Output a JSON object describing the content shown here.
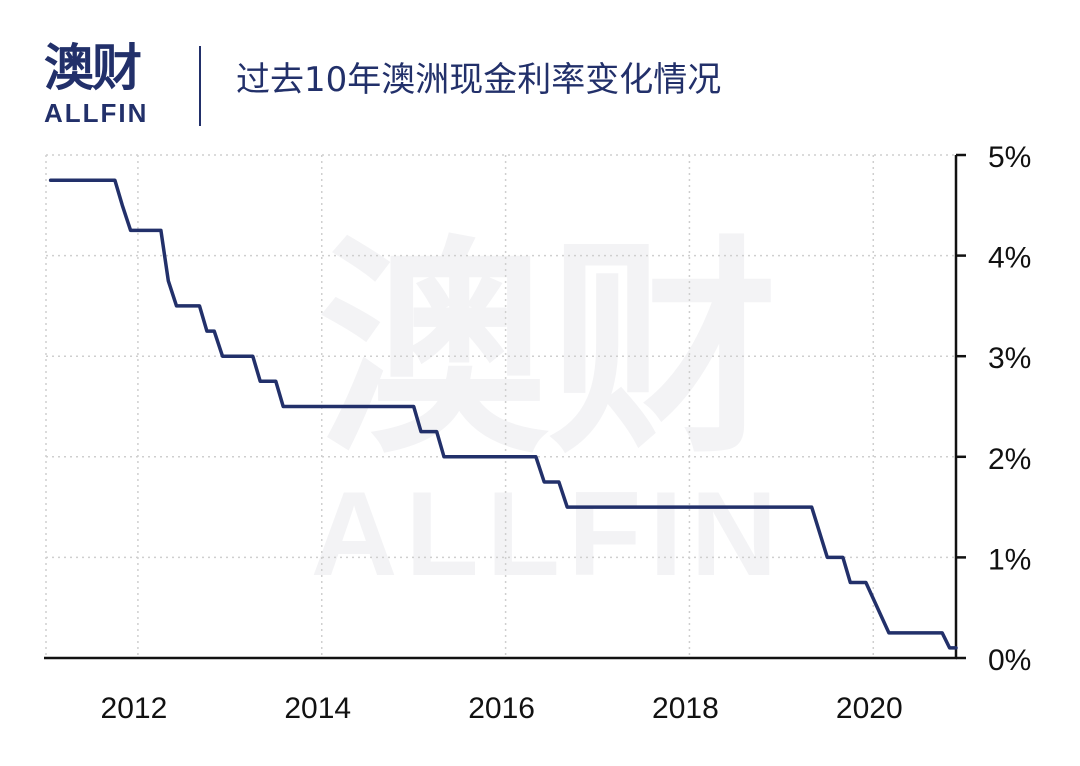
{
  "brand": {
    "name_cn": "澳财",
    "name_en": "ALLFIN",
    "color": "#22306a",
    "accent": "#d63a5c"
  },
  "title": "过去10年澳洲现金利率变化情况",
  "chart_data": {
    "type": "line",
    "title": "过去10年澳洲现金利率变化情况",
    "xlabel": "",
    "ylabel": "",
    "x_ticks": [
      "2012",
      "2014",
      "2016",
      "2018",
      "2020"
    ],
    "y_ticks": [
      "0%",
      "1%",
      "2%",
      "3%",
      "4%",
      "5%"
    ],
    "xlim": [
      2011.0,
      2020.9
    ],
    "ylim": [
      0,
      5
    ],
    "y_axis_position": "right",
    "grid": true,
    "line_color": "#22306a",
    "series": [
      {
        "name": "",
        "points": [
          [
            2011.05,
            4.75
          ],
          [
            2011.75,
            4.75
          ],
          [
            2011.83,
            4.5
          ],
          [
            2011.92,
            4.25
          ],
          [
            2012.25,
            4.25
          ],
          [
            2012.33,
            3.75
          ],
          [
            2012.42,
            3.5
          ],
          [
            2012.67,
            3.5
          ],
          [
            2012.75,
            3.25
          ],
          [
            2012.83,
            3.25
          ],
          [
            2012.92,
            3.0
          ],
          [
            2013.25,
            3.0
          ],
          [
            2013.33,
            2.75
          ],
          [
            2013.5,
            2.75
          ],
          [
            2013.58,
            2.5
          ],
          [
            2015.0,
            2.5
          ],
          [
            2015.08,
            2.25
          ],
          [
            2015.25,
            2.25
          ],
          [
            2015.33,
            2.0
          ],
          [
            2016.33,
            2.0
          ],
          [
            2016.42,
            1.75
          ],
          [
            2016.58,
            1.75
          ],
          [
            2016.67,
            1.5
          ],
          [
            2019.33,
            1.5
          ],
          [
            2019.5,
            1.0
          ],
          [
            2019.67,
            1.0
          ],
          [
            2019.75,
            0.75
          ],
          [
            2019.92,
            0.75
          ],
          [
            2020.17,
            0.25
          ],
          [
            2020.75,
            0.25
          ],
          [
            2020.83,
            0.1
          ],
          [
            2020.9,
            0.1
          ]
        ]
      }
    ]
  }
}
